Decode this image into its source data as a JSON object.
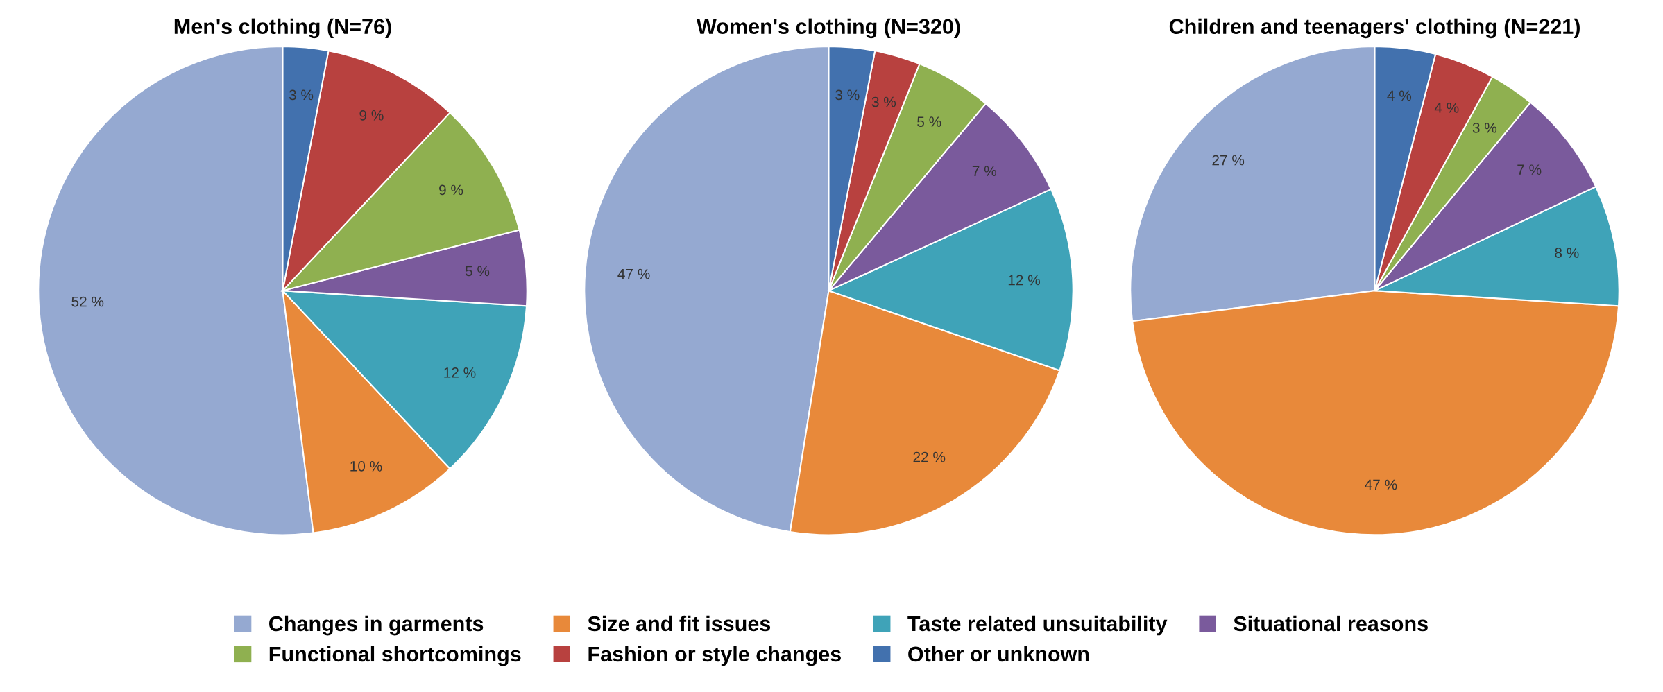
{
  "chart_data": [
    {
      "type": "pie",
      "title": "Men's clothing (N=76)",
      "legend": "bottom",
      "categories": [
        "Changes in garments",
        "Size and fit issues",
        "Taste related unsuitability",
        "Situational reasons",
        "Functional shortcomings",
        "Fashion or style changes",
        "Other or unknown"
      ],
      "values": [
        52,
        10,
        12,
        5,
        9,
        9,
        3
      ],
      "value_labels": [
        "52 %",
        "10 %",
        "12 %",
        "5 %",
        "9 %",
        "9 %",
        "3 %"
      ],
      "colors": [
        "#95a9d1",
        "#e8893a",
        "#3fa3b8",
        "#7a5a9c",
        "#8fb050",
        "#b8413f",
        "#4271ae"
      ]
    },
    {
      "type": "pie",
      "title": "Women's clothing (N=320)",
      "categories": [
        null,
        null,
        null,
        null,
        null,
        null,
        null
      ],
      "values": [
        47,
        22,
        12,
        7,
        5,
        3,
        3
      ],
      "value_labels": [
        "47 %",
        "22 %",
        "12 %",
        "7 %",
        "5 %",
        "3 %",
        "3 %"
      ],
      "colors": [
        "#95a9d1",
        "#e8893a",
        "#3fa3b8",
        "#7a5a9c",
        "#8fb050",
        "#b8413f",
        "#4271ae"
      ]
    },
    {
      "type": "pie",
      "title": "Children and teenagers' clothing (N=221)",
      "categories": [
        null,
        null,
        null,
        null,
        null,
        null,
        null
      ],
      "values": [
        27,
        47,
        8,
        7,
        3,
        4,
        4
      ],
      "value_labels": [
        "27 %",
        "47 %",
        "8 %",
        "7 %",
        "3 %",
        "4 %",
        "4 %"
      ],
      "colors": [
        "#95a9d1",
        "#e8893a",
        "#3fa3b8",
        "#7a5a9c",
        "#8fb050",
        "#b8413f",
        "#4271ae"
      ]
    }
  ]
}
